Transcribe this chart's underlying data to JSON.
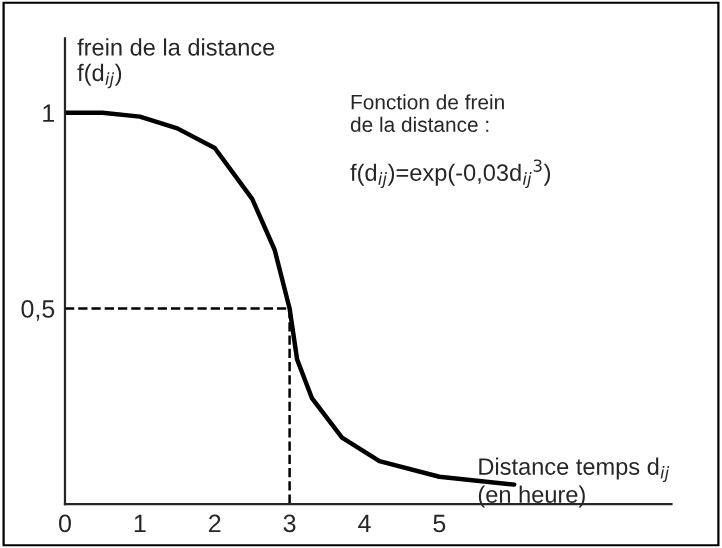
{
  "chart_data": {
    "type": "line",
    "ylabel": "frein de la distance\nf(d$_{ij}$)",
    "xlabel": "Distance temps d$_{ij}$\n(en heure)",
    "annotations": [
      "Fonction de frein\nde la distance :",
      "f(d$_{ij}$)=exp(-0,03d$_{ij}$$^{3}$)"
    ],
    "xlim": [
      0,
      8.1
    ],
    "ylim": [
      0,
      1.19
    ],
    "xticks": [
      0,
      1,
      2,
      3,
      4,
      5
    ],
    "yticks": [
      {
        "value": 0.5,
        "label": "0,5"
      },
      1
    ],
    "grid": false,
    "legend": false,
    "marker": "none",
    "series": [
      {
        "color": "#000000",
        "line_style": "solid",
        "x": [
          0,
          0.5,
          1,
          1.5,
          2,
          2.5,
          2.8,
          3,
          3.1,
          3.3,
          3.7,
          4.2,
          5,
          6
        ],
        "values": [
          1,
          1,
          0.99,
          0.96,
          0.91,
          0.78,
          0.65,
          0.5,
          0.37,
          0.27,
          0.17,
          0.11,
          0.07,
          0.05
        ]
      },
      {
        "color": "#000000",
        "line_style": "dashed",
        "x": [
          0,
          3,
          3
        ],
        "values": [
          0.5,
          0.5,
          0
        ]
      }
    ]
  }
}
